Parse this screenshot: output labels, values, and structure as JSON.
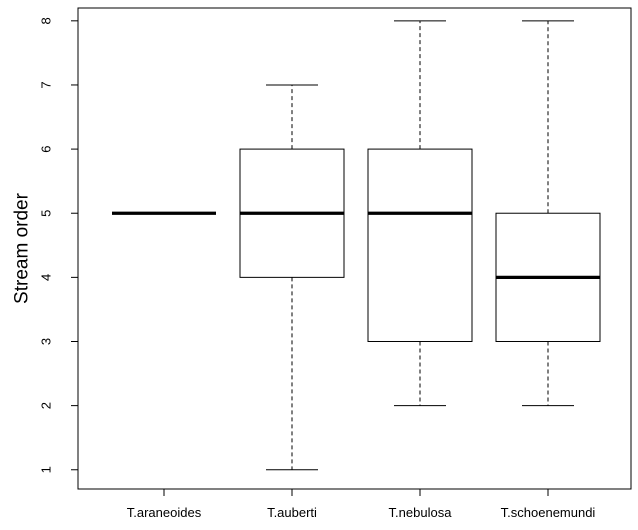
{
  "chart_data": {
    "type": "boxplot",
    "title": "",
    "xlabel": "",
    "ylabel": "Stream order",
    "ylim": [
      0.7,
      8.2
    ],
    "yticks": [
      1,
      2,
      3,
      4,
      5,
      6,
      7,
      8
    ],
    "grid": false,
    "legend": "none",
    "categories": [
      "T.araneoides",
      "T.auberti",
      "T.nebulosa",
      "T.schoenemundi"
    ],
    "boxes": [
      {
        "category": "T.araneoides",
        "min": 5,
        "q1": 5,
        "median": 5,
        "q3": 5,
        "max": 5
      },
      {
        "category": "T.auberti",
        "min": 1,
        "q1": 4,
        "median": 5,
        "q3": 6,
        "max": 7
      },
      {
        "category": "T.nebulosa",
        "min": 2,
        "q1": 3,
        "median": 5,
        "q3": 6,
        "max": 8
      },
      {
        "category": "T.schoenemundi",
        "min": 2,
        "q1": 3,
        "median": 4,
        "q3": 5,
        "max": 8
      }
    ]
  }
}
